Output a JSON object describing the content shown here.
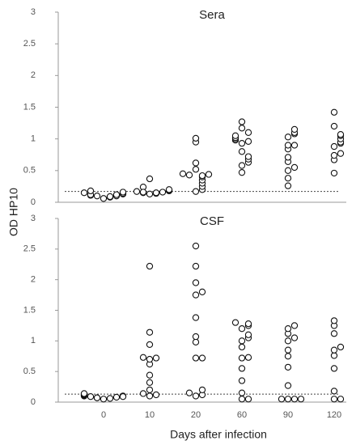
{
  "axis_labels": {
    "y": "OD HP10",
    "x": "Days after infection"
  },
  "chart_data": [
    {
      "type": "strip",
      "title": "Sera",
      "categories": [
        "0",
        "10",
        "20",
        "60",
        "90",
        "120"
      ],
      "values": [
        [
          0.06,
          0.08,
          0.1,
          0.1,
          0.11,
          0.12,
          0.13,
          0.14,
          0.15,
          0.16,
          0.18,
          0.09,
          0.12
        ],
        [
          0.13,
          0.14,
          0.15,
          0.16,
          0.17,
          0.18,
          0.19,
          0.2,
          0.24,
          0.37,
          0.15,
          0.16
        ],
        [
          0.17,
          0.2,
          0.25,
          0.3,
          0.35,
          0.4,
          0.42,
          0.43,
          0.44,
          0.45,
          0.52,
          0.62,
          0.95,
          1.01
        ],
        [
          0.47,
          0.58,
          0.63,
          0.68,
          0.72,
          0.8,
          0.93,
          0.96,
          0.98,
          1.0,
          1.02,
          1.05,
          1.1,
          1.17,
          1.27
        ],
        [
          0.26,
          0.38,
          0.5,
          0.55,
          0.64,
          0.71,
          0.84,
          0.9,
          0.9,
          1.03,
          1.08,
          1.1,
          1.15
        ],
        [
          0.46,
          0.67,
          0.74,
          0.77,
          0.88,
          0.93,
          0.95,
          1.0,
          1.05,
          1.07,
          1.2,
          1.42
        ]
      ],
      "cutoff": 0.17,
      "ylim": [
        0,
        3
      ],
      "yticks": [
        0,
        0.5,
        1,
        1.5,
        2,
        2.5,
        3
      ]
    },
    {
      "type": "strip",
      "title": "CSF",
      "categories": [
        "0",
        "10",
        "20",
        "60",
        "90",
        "120"
      ],
      "values": [
        [
          0.05,
          0.06,
          0.07,
          0.08,
          0.09,
          0.1,
          0.1,
          0.11,
          0.12,
          0.13,
          0.14,
          0.07,
          0.09
        ],
        [
          0.1,
          0.12,
          0.14,
          0.2,
          0.32,
          0.44,
          0.62,
          0.7,
          0.72,
          0.73,
          0.94,
          1.14,
          2.22
        ],
        [
          0.1,
          0.12,
          0.15,
          0.2,
          0.72,
          0.72,
          0.98,
          1.07,
          1.38,
          1.75,
          1.8,
          1.95,
          2.22,
          2.55
        ],
        [
          0.05,
          0.05,
          0.15,
          0.35,
          0.55,
          0.72,
          0.73,
          0.9,
          1.0,
          1.05,
          1.1,
          1.2,
          1.25,
          1.28,
          1.3
        ],
        [
          0.05,
          0.05,
          0.05,
          0.05,
          0.27,
          0.57,
          0.75,
          0.85,
          1.0,
          1.05,
          1.12,
          1.2,
          1.25
        ],
        [
          0.05,
          0.05,
          0.18,
          0.55,
          0.76,
          0.85,
          0.9,
          1.12,
          1.25,
          1.33
        ]
      ],
      "cutoff": 0.13,
      "ylim": [
        0,
        3
      ],
      "yticks": [
        0,
        0.5,
        1,
        1.5,
        2,
        2.5,
        3
      ]
    }
  ]
}
